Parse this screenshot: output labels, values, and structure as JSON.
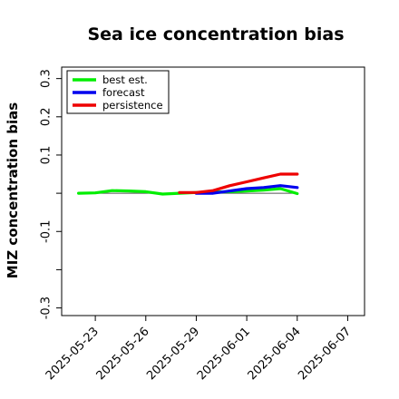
{
  "chart_data": {
    "type": "line",
    "title": "Sea ice concentration bias",
    "ylabel": "MIZ concentration bias",
    "xlabel": "",
    "xlim": [
      "2025-05-21",
      "2025-06-08"
    ],
    "ylim": [
      -0.32,
      0.33
    ],
    "xticks": [
      "2025-05-23",
      "2025-05-26",
      "2025-05-29",
      "2025-06-01",
      "2025-06-04",
      "2025-06-07"
    ],
    "xtick_label_colors": [
      "#000000",
      "#000000",
      "#228b22",
      "#000000",
      "#000000",
      "#000000"
    ],
    "yticks": [
      -0.3,
      -0.2,
      -0.1,
      0.0,
      0.1,
      0.2,
      0.3
    ],
    "ytick_labels": [
      "-0.3",
      "",
      "-0.1",
      "",
      "0.1",
      "0.2",
      "0.3"
    ],
    "reference_line": 0.0,
    "legend_position": "top-left",
    "series": [
      {
        "name": "best est.",
        "color": "#00ee00",
        "x": [
          "2025-05-22",
          "2025-05-23",
          "2025-05-24",
          "2025-05-25",
          "2025-05-26",
          "2025-05-27",
          "2025-05-28",
          "2025-05-29",
          "2025-05-30",
          "2025-05-31",
          "2025-06-01",
          "2025-06-02",
          "2025-06-03",
          "2025-06-04"
        ],
        "y": [
          0.0,
          0.001,
          0.007,
          0.006,
          0.004,
          -0.002,
          0.0,
          0.002,
          0.003,
          0.004,
          0.006,
          0.008,
          0.012,
          -0.001
        ]
      },
      {
        "name": "forecast",
        "color": "#0000ee",
        "x": [
          "2025-05-29",
          "2025-05-30",
          "2025-05-31",
          "2025-06-01",
          "2025-06-02",
          "2025-06-03",
          "2025-06-04"
        ],
        "y": [
          0.0,
          0.0,
          0.006,
          0.012,
          0.015,
          0.02,
          0.015
        ]
      },
      {
        "name": "persistence",
        "color": "#ee0000",
        "x": [
          "2025-05-28",
          "2025-05-29",
          "2025-05-30",
          "2025-05-31",
          "2025-06-01",
          "2025-06-02",
          "2025-06-03",
          "2025-06-04"
        ],
        "y": [
          0.002,
          0.002,
          0.007,
          0.02,
          0.03,
          0.04,
          0.05,
          0.05
        ]
      }
    ]
  }
}
